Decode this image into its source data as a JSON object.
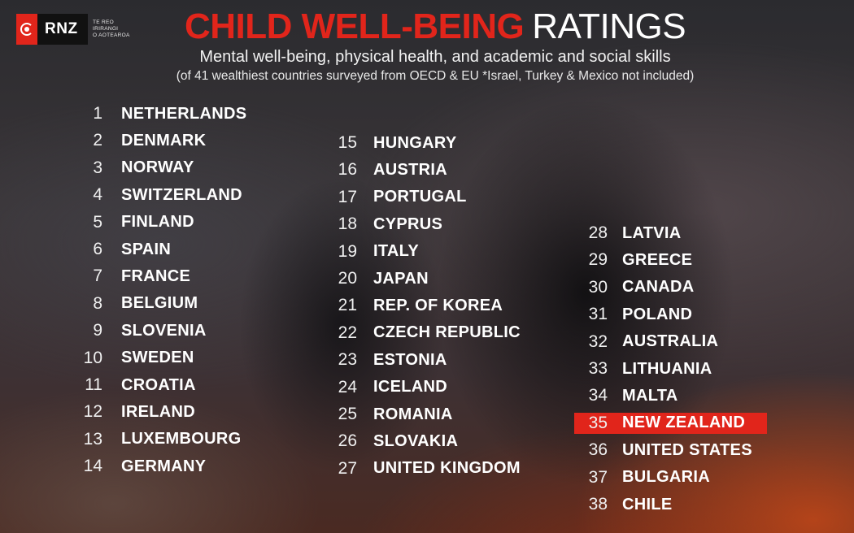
{
  "logo": {
    "name": "RNZ",
    "tagline_lines": [
      "TE REO",
      "IRIRANGI",
      "O AOTEAROA"
    ]
  },
  "header": {
    "title_accent": "CHILD WELL-BEING",
    "title_rest": "RATINGS",
    "subtitle": "Mental well-being, physical health, and academic and social skills",
    "note": "(of 41 wealthiest countries surveyed from OECD & EU  *Israel, Turkey & Mexico not included)"
  },
  "accent_color": "#e1251b",
  "highlight_rank": "35",
  "rankings": {
    "column1": [
      {
        "rank": "1",
        "country": "NETHERLANDS"
      },
      {
        "rank": "2",
        "country": "DENMARK"
      },
      {
        "rank": "3",
        "country": "NORWAY"
      },
      {
        "rank": "4",
        "country": "SWITZERLAND"
      },
      {
        "rank": "5",
        "country": "FINLAND"
      },
      {
        "rank": "6",
        "country": "SPAIN"
      },
      {
        "rank": "7",
        "country": "FRANCE"
      },
      {
        "rank": "8",
        "country": "BELGIUM"
      },
      {
        "rank": "9",
        "country": "SLOVENIA"
      },
      {
        "rank": "10",
        "country": "SWEDEN"
      },
      {
        "rank": "11",
        "country": "CROATIA"
      },
      {
        "rank": "12",
        "country": "IRELAND"
      },
      {
        "rank": "13",
        "country": "LUXEMBOURG"
      },
      {
        "rank": "14",
        "country": "GERMANY"
      }
    ],
    "column2": [
      {
        "rank": "15",
        "country": "HUNGARY"
      },
      {
        "rank": "16",
        "country": "AUSTRIA"
      },
      {
        "rank": "17",
        "country": "PORTUGAL"
      },
      {
        "rank": "18",
        "country": "CYPRUS"
      },
      {
        "rank": "19",
        "country": "ITALY"
      },
      {
        "rank": "20",
        "country": "JAPAN"
      },
      {
        "rank": "21",
        "country": "REP. OF KOREA"
      },
      {
        "rank": "22",
        "country": "CZECH REPUBLIC"
      },
      {
        "rank": "23",
        "country": "ESTONIA"
      },
      {
        "rank": "24",
        "country": "ICELAND"
      },
      {
        "rank": "25",
        "country": "ROMANIA"
      },
      {
        "rank": "26",
        "country": "SLOVAKIA"
      },
      {
        "rank": "27",
        "country": "UNITED KINGDOM"
      }
    ],
    "column3": [
      {
        "rank": "28",
        "country": "LATVIA"
      },
      {
        "rank": "29",
        "country": "GREECE"
      },
      {
        "rank": "30",
        "country": "CANADA"
      },
      {
        "rank": "31",
        "country": "POLAND"
      },
      {
        "rank": "32",
        "country": "AUSTRALIA"
      },
      {
        "rank": "33",
        "country": "LITHUANIA"
      },
      {
        "rank": "34",
        "country": "MALTA"
      },
      {
        "rank": "35",
        "country": "NEW ZEALAND"
      },
      {
        "rank": "36",
        "country": "UNITED STATES"
      },
      {
        "rank": "37",
        "country": "BULGARIA"
      },
      {
        "rank": "38",
        "country": "CHILE"
      }
    ]
  }
}
